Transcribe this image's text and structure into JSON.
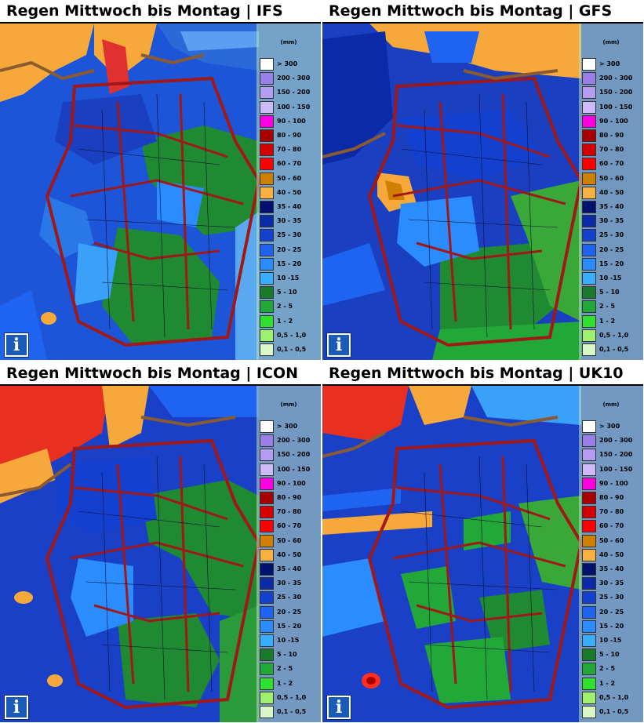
{
  "panels": [
    {
      "title": "Regen Mittwoch bis Montag | IFS"
    },
    {
      "title": "Regen Mittwoch bis Montag | GFS"
    },
    {
      "title": "Regen Mittwoch bis Montag | ICON"
    },
    {
      "title": "Regen Mittwoch bis Montag | UK10"
    }
  ],
  "legend": {
    "unit": "(mm)",
    "items": [
      {
        "label": "> 300",
        "color": "#ffffff"
      },
      {
        "label": "200 - 300",
        "color": "#9b7fe8"
      },
      {
        "label": "150 - 200",
        "color": "#b49cf0"
      },
      {
        "label": "100 - 150",
        "color": "#cdbaf7"
      },
      {
        "label": "90 - 100",
        "color": "#ff00e0"
      },
      {
        "label": "80 - 90",
        "color": "#a80000"
      },
      {
        "label": "70 - 80",
        "color": "#d40000"
      },
      {
        "label": "60 - 70",
        "color": "#ff0000"
      },
      {
        "label": "50 - 60",
        "color": "#d08000"
      },
      {
        "label": "40 - 50",
        "color": "#f8b040"
      },
      {
        "label": "35 - 40",
        "color": "#00126e"
      },
      {
        "label": "30 - 35",
        "color": "#0a2aa8"
      },
      {
        "label": "25 - 30",
        "color": "#1440d0"
      },
      {
        "label": "20 - 25",
        "color": "#1e64f0"
      },
      {
        "label": "15 - 20",
        "color": "#2a8cff"
      },
      {
        "label": "10 -15",
        "color": "#3aaefc"
      },
      {
        "label": "5 - 10",
        "color": "#1a7a2a"
      },
      {
        "label": "2 - 5",
        "color": "#22a838"
      },
      {
        "label": "1 - 2",
        "color": "#30e030"
      },
      {
        "label": "0,5 - 1,0",
        "color": "#a0f070"
      },
      {
        "label": "0,1 - 0,5",
        "color": "#d8f8c8"
      }
    ]
  },
  "info_icon": {
    "glyph": "i",
    "icon": "info-icon"
  }
}
